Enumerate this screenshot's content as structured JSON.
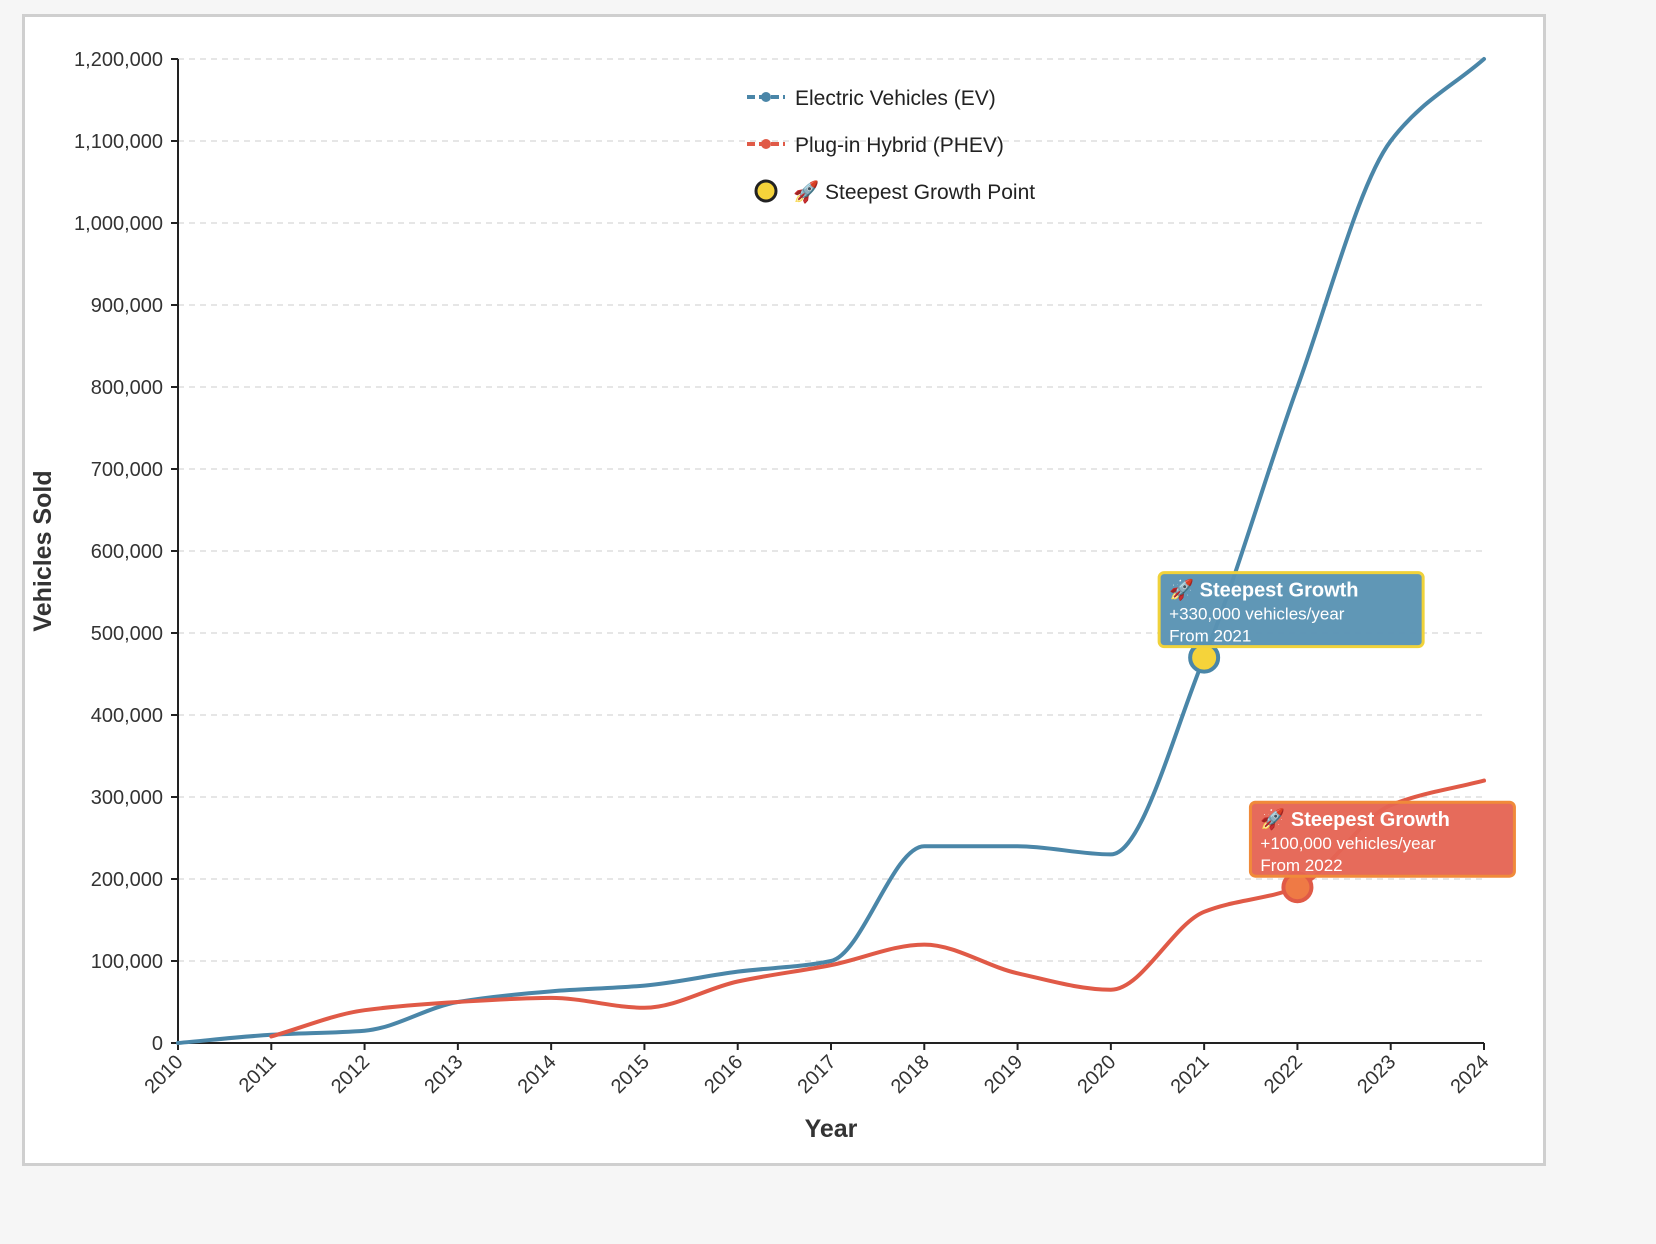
{
  "chart_data": {
    "type": "line",
    "xlabel": "Year",
    "ylabel": "Vehicles Sold",
    "x": [
      2010,
      2011,
      2012,
      2013,
      2014,
      2015,
      2016,
      2017,
      2018,
      2019,
      2020,
      2021,
      2022,
      2023,
      2024
    ],
    "xlim": [
      2010,
      2024
    ],
    "ylim": [
      0,
      1200000
    ],
    "y_ticks": [
      0,
      100000,
      200000,
      300000,
      400000,
      500000,
      600000,
      700000,
      800000,
      900000,
      1000000,
      1100000,
      1200000
    ],
    "y_tick_labels": [
      "0",
      "100,000",
      "200,000",
      "300,000",
      "400,000",
      "500,000",
      "600,000",
      "700,000",
      "800,000",
      "900,000",
      "1,000,000",
      "1,100,000",
      "1,200,000"
    ],
    "x_tick_labels": [
      "2010",
      "2011",
      "2012",
      "2013",
      "2014",
      "2015",
      "2016",
      "2017",
      "2018",
      "2019",
      "2020",
      "2021",
      "2022",
      "2023",
      "2024"
    ],
    "grid": "horizontal dashed",
    "legend_position": "top-center",
    "series": [
      {
        "name": "Electric Vehicles (EV)",
        "color": "#4a86a8",
        "x": [
          2010,
          2011,
          2012,
          2013,
          2014,
          2015,
          2016,
          2017,
          2018,
          2019,
          2020,
          2021,
          2022,
          2023,
          2024
        ],
        "values": [
          0,
          10000,
          15000,
          50000,
          63000,
          70000,
          87000,
          100000,
          240000,
          240000,
          230000,
          470000,
          800000,
          1100000,
          1200000
        ]
      },
      {
        "name": "Plug-in Hybrid (PHEV)",
        "color": "#e05a47",
        "x": [
          2011,
          2012,
          2013,
          2014,
          2015,
          2016,
          2017,
          2018,
          2019,
          2020,
          2021,
          2022,
          2023,
          2024
        ],
        "values": [
          8000,
          40000,
          50000,
          55000,
          43000,
          75000,
          95000,
          120000,
          85000,
          65000,
          160000,
          190000,
          290000,
          320000
        ]
      }
    ],
    "legend": [
      {
        "label": "Electric Vehicles (EV)",
        "kind": "line",
        "color": "#4a86a8"
      },
      {
        "label": "Plug-in Hybrid (PHEV)",
        "kind": "line",
        "color": "#e05a47"
      },
      {
        "label": "🚀 Steepest Growth Point",
        "kind": "marker",
        "color": "#f5d33a"
      }
    ],
    "annotations": [
      {
        "series": "Electric Vehicles (EV)",
        "x": 2021,
        "y": 470000,
        "title": "🚀 Steepest Growth",
        "line1": "+330,000 vehicles/year",
        "line2": "From 2021",
        "box_color": "#5a93b3",
        "border_color": "#f0d23a",
        "marker_color": "#f5d33a",
        "marker_border": "#4a86a8"
      },
      {
        "series": "Plug-in Hybrid (PHEV)",
        "x": 2022,
        "y": 190000,
        "title": "🚀 Steepest Growth",
        "line1": "+100,000 vehicles/year",
        "line2": "From 2022",
        "box_color": "#e56554",
        "border_color": "#f08a3a",
        "marker_color": "#ef7a45",
        "marker_border": "#e05a47"
      }
    ]
  }
}
